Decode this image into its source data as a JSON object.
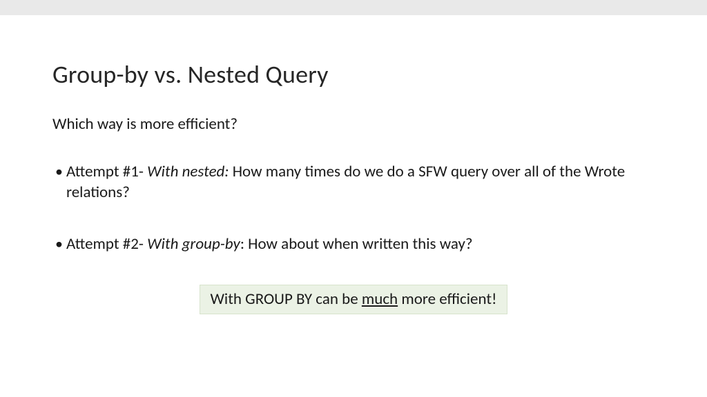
{
  "colors": {
    "topbar": "#e9e9e9",
    "background": "#ffffff",
    "text": "#1a1a1a",
    "title": "#262626",
    "highlight_bg": "#ebf2e5",
    "highlight_border": "#d7e3cc"
  },
  "typography": {
    "title_fontsize": 36,
    "body_fontsize": 23,
    "font_family": "Calibri"
  },
  "title": "Group-by vs. Nested Query",
  "subhead": "Which way is more efficient?",
  "bullets": [
    {
      "label": "Attempt #1- ",
      "emph": "With nested:",
      "rest": " How many times do we do a SFW query over all of the Wrote relations?"
    },
    {
      "label": "Attempt #2- ",
      "emph": "With group-by",
      "rest": ": How about when written this way?"
    }
  ],
  "highlight": {
    "pre": "With GROUP BY can be ",
    "u": "much",
    "post": " more efficient!"
  }
}
